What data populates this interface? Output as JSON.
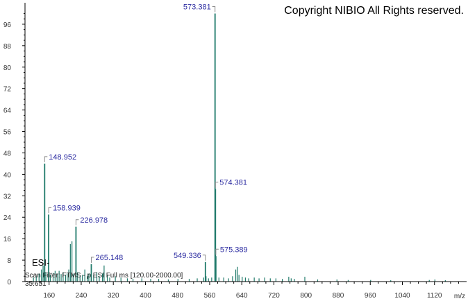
{
  "copyright": "Copyright NIBIO All Rights reserved.",
  "ion_mode": "ESI-",
  "scan_filter": "Scan Filter: FTMS - p ESI Full ms [120.00-2000.00]",
  "base_intensity": "35.651",
  "colors": {
    "peak": "#1f7a6a",
    "axis": "#000000",
    "label": "#2a2aa0"
  },
  "chart_data": {
    "type": "bar",
    "title": "",
    "xlabel": "m/z",
    "ylabel": "",
    "xlim": [
      100,
      1200
    ],
    "ylim": [
      0,
      104
    ],
    "x_ticks": [
      160,
      240,
      320,
      400,
      480,
      560,
      640,
      720,
      800,
      880,
      960,
      1040,
      1120
    ],
    "y_ticks": [
      0,
      8,
      16,
      24,
      32,
      40,
      48,
      56,
      64,
      72,
      80,
      88,
      96
    ],
    "grid": false,
    "labeled_peaks": [
      {
        "mz": 148.952,
        "intensity": 44,
        "label": "148.952"
      },
      {
        "mz": 158.939,
        "intensity": 25,
        "label": "158.939"
      },
      {
        "mz": 226.978,
        "intensity": 20.5,
        "label": "226.978"
      },
      {
        "mz": 265.148,
        "intensity": 6.5,
        "label": "265.148"
      },
      {
        "mz": 549.336,
        "intensity": 7.3,
        "label": "549.336"
      },
      {
        "mz": 573.381,
        "intensity": 100,
        "label": "573.381"
      },
      {
        "mz": 574.381,
        "intensity": 34.5,
        "label": "574.381"
      },
      {
        "mz": 575.389,
        "intensity": 9.5,
        "label": "575.389"
      }
    ],
    "minor_peaks": [
      {
        "mz": 121,
        "intensity": 1.5
      },
      {
        "mz": 128,
        "intensity": 2.2
      },
      {
        "mz": 135,
        "intensity": 3.0
      },
      {
        "mz": 141,
        "intensity": 4.5
      },
      {
        "mz": 145,
        "intensity": 6.0
      },
      {
        "mz": 152,
        "intensity": 3.5
      },
      {
        "mz": 163,
        "intensity": 2.5
      },
      {
        "mz": 170,
        "intensity": 3.2
      },
      {
        "mz": 175,
        "intensity": 4.0
      },
      {
        "mz": 180,
        "intensity": 3.0
      },
      {
        "mz": 185,
        "intensity": 4.0
      },
      {
        "mz": 190,
        "intensity": 2.8
      },
      {
        "mz": 195,
        "intensity": 3.5
      },
      {
        "mz": 201,
        "intensity": 2.5
      },
      {
        "mz": 205,
        "intensity": 3.0
      },
      {
        "mz": 209,
        "intensity": 4.5
      },
      {
        "mz": 213,
        "intensity": 14.0
      },
      {
        "mz": 217,
        "intensity": 15.0
      },
      {
        "mz": 221,
        "intensity": 3.0
      },
      {
        "mz": 231,
        "intensity": 3.5
      },
      {
        "mz": 237,
        "intensity": 2.0
      },
      {
        "mz": 243,
        "intensity": 2.5
      },
      {
        "mz": 249,
        "intensity": 4.5
      },
      {
        "mz": 255,
        "intensity": 2.0
      },
      {
        "mz": 259,
        "intensity": 3.0
      },
      {
        "mz": 271,
        "intensity": 2.5
      },
      {
        "mz": 279,
        "intensity": 3.5
      },
      {
        "mz": 285,
        "intensity": 2.0
      },
      {
        "mz": 293,
        "intensity": 3.0
      },
      {
        "mz": 297,
        "intensity": 6.0
      },
      {
        "mz": 305,
        "intensity": 2.5
      },
      {
        "mz": 311,
        "intensity": 1.5
      },
      {
        "mz": 325,
        "intensity": 2.0
      },
      {
        "mz": 339,
        "intensity": 1.5
      },
      {
        "mz": 355,
        "intensity": 1.2
      },
      {
        "mz": 369,
        "intensity": 1.0
      },
      {
        "mz": 391,
        "intensity": 1.2
      },
      {
        "mz": 413,
        "intensity": 1.0
      },
      {
        "mz": 433,
        "intensity": 1.0
      },
      {
        "mz": 457,
        "intensity": 0.8
      },
      {
        "mz": 481,
        "intensity": 1.0
      },
      {
        "mz": 509,
        "intensity": 1.0
      },
      {
        "mz": 529,
        "intensity": 1.2
      },
      {
        "mz": 545,
        "intensity": 1.5
      },
      {
        "mz": 551,
        "intensity": 2.0
      },
      {
        "mz": 557,
        "intensity": 1.2
      },
      {
        "mz": 565,
        "intensity": 1.5
      },
      {
        "mz": 583,
        "intensity": 1.5
      },
      {
        "mz": 595,
        "intensity": 1.5
      },
      {
        "mz": 607,
        "intensity": 1.2
      },
      {
        "mz": 617,
        "intensity": 2.0
      },
      {
        "mz": 625,
        "intensity": 4.5
      },
      {
        "mz": 629,
        "intensity": 5.5
      },
      {
        "mz": 633,
        "intensity": 2.5
      },
      {
        "mz": 641,
        "intensity": 1.8
      },
      {
        "mz": 649,
        "intensity": 1.5
      },
      {
        "mz": 657,
        "intensity": 1.2
      },
      {
        "mz": 671,
        "intensity": 1.5
      },
      {
        "mz": 683,
        "intensity": 1.2
      },
      {
        "mz": 697,
        "intensity": 1.5
      },
      {
        "mz": 711,
        "intensity": 1.2
      },
      {
        "mz": 725,
        "intensity": 1.2
      },
      {
        "mz": 741,
        "intensity": 1.0
      },
      {
        "mz": 757,
        "intensity": 1.8
      },
      {
        "mz": 763,
        "intensity": 1.2
      },
      {
        "mz": 771,
        "intensity": 1.0
      },
      {
        "mz": 797,
        "intensity": 1.8
      },
      {
        "mz": 829,
        "intensity": 0.8
      },
      {
        "mz": 877,
        "intensity": 0.8
      },
      {
        "mz": 905,
        "intensity": 0.6
      },
      {
        "mz": 961,
        "intensity": 0.6
      },
      {
        "mz": 1011,
        "intensity": 0.5
      },
      {
        "mz": 1107,
        "intensity": 0.6
      },
      {
        "mz": 1121,
        "intensity": 0.8
      },
      {
        "mz": 1147,
        "intensity": 0.5
      }
    ]
  }
}
